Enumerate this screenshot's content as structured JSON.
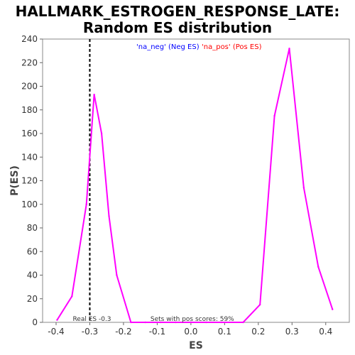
{
  "chart_data": {
    "type": "line",
    "title_line1": "HALLMARK_ESTROGEN_RESPONSE_LATE:",
    "title_line2": "Random ES distribution",
    "xlabel": "ES",
    "ylabel": "P(ES)",
    "xlim": [
      -0.44,
      0.47
    ],
    "ylim": [
      0,
      240
    ],
    "xticks": [
      "-0.4",
      "-0.3",
      "-0.2",
      "-0.1",
      "0.0",
      "0.1",
      "0.2",
      "0.3",
      "0.4"
    ],
    "xtick_values": [
      -0.4,
      -0.3,
      -0.2,
      -0.1,
      0.0,
      0.1,
      0.2,
      0.3,
      0.4
    ],
    "yticks": [
      "0",
      "20",
      "40",
      "60",
      "80",
      "100",
      "120",
      "140",
      "160",
      "180",
      "200",
      "220",
      "240"
    ],
    "ytick_values": [
      0,
      20,
      40,
      60,
      80,
      100,
      120,
      140,
      160,
      180,
      200,
      220,
      240
    ],
    "grid": false,
    "series": [
      {
        "name": "'na_neg' (Neg ES)",
        "color": "#0000ff",
        "x": [],
        "y": []
      },
      {
        "name": "'na_pos' (Pos ES)",
        "color": "#ff0000",
        "x": [],
        "y": []
      },
      {
        "name": "",
        "color": "#ff00ff",
        "x": [
          -0.397,
          -0.353,
          -0.31,
          -0.287,
          -0.265,
          -0.243,
          -0.22,
          -0.178,
          -0.135,
          -0.09,
          -0.045,
          0.0,
          0.045,
          0.09,
          0.155,
          0.205,
          0.248,
          0.292,
          0.335,
          0.378,
          0.42
        ],
        "y": [
          2,
          22,
          100,
          193,
          160,
          90,
          40,
          0,
          0,
          0,
          0,
          0,
          0,
          0,
          0,
          15,
          175,
          232,
          114,
          47,
          11
        ]
      }
    ],
    "real_es_marker": {
      "x": -0.3,
      "color": "#000000",
      "style": "dashed",
      "label": "Real ES -0.3"
    },
    "annotation": "Sets with pos scores: 59%",
    "legend_placement": "top-center"
  }
}
